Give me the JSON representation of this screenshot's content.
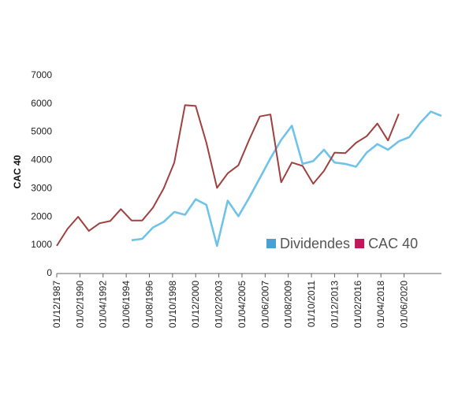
{
  "chart_data": {
    "type": "line",
    "title": "",
    "xlabel": "",
    "ylabel": "CAC 40",
    "ylim": [
      0,
      7000
    ],
    "yticks": [
      "0",
      "1000",
      "2000",
      "3000",
      "4000",
      "5000",
      "6000",
      "7000"
    ],
    "grid": false,
    "legend_position": "center-right",
    "x_tick_labels": [
      "01/12/1987",
      "01/02/1990",
      "01/04/1992",
      "01/06/1994",
      "01/08/1996",
      "01/10/1998",
      "01/12/2000",
      "01/02/2003",
      "01/04/2005",
      "01/06/2007",
      "01/08/2009",
      "01/10/2011",
      "01/12/2013",
      "01/02/2016",
      "01/04/2018",
      "01/06/2020"
    ],
    "x": [
      "12/1987",
      "12/1988",
      "12/1989",
      "12/1990",
      "12/1991",
      "12/1992",
      "12/1993",
      "12/1994",
      "12/1995",
      "12/1996",
      "12/1997",
      "12/1998",
      "12/1999",
      "12/2000",
      "12/2001",
      "12/2002",
      "12/2003",
      "12/2004",
      "12/2005",
      "12/2006",
      "12/2007",
      "12/2008",
      "12/2009",
      "12/2010",
      "12/2011",
      "12/2012",
      "12/2013",
      "12/2014",
      "12/2015",
      "12/2016",
      "12/2017",
      "12/2018",
      "12/2019",
      "12/2020",
      "12/2021",
      "12/2022",
      "12/2023"
    ],
    "series": [
      {
        "name": "Dividendes",
        "color": "#6fc3e8",
        "legend_color": "#4a9fd5",
        "values": [
          null,
          null,
          null,
          null,
          null,
          null,
          null,
          1150,
          1200,
          1600,
          1800,
          2150,
          2050,
          2600,
          2400,
          950,
          2550,
          2000,
          2650,
          3350,
          4050,
          4700,
          5200,
          3850,
          3950,
          4350,
          3900,
          3850,
          3750,
          4250,
          4550,
          4350,
          4650,
          4800,
          5300,
          5700,
          5550
        ]
      },
      {
        "name": "CAC 40",
        "color": "#a0403f",
        "legend_color": "#c2185b",
        "values": [
          950,
          1550,
          1980,
          1480,
          1750,
          1830,
          2250,
          1850,
          1850,
          2300,
          2980,
          3900,
          5930,
          5900,
          4600,
          3000,
          3520,
          3800,
          4700,
          5530,
          5600,
          3200,
          3900,
          3780,
          3150,
          3600,
          4250,
          4230,
          4600,
          4830,
          5280,
          4680,
          5620,
          null,
          null,
          null,
          null
        ]
      }
    ]
  }
}
